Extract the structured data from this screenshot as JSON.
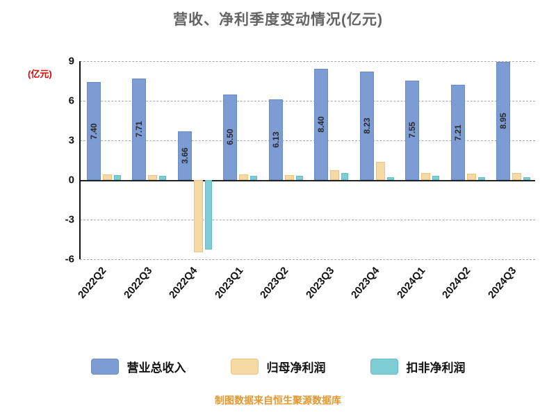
{
  "title": "营收、净利季度变动情况(亿元)",
  "y_axis_label": "(亿元)",
  "footer": "制图数据来自恒生聚源数据库",
  "chart_data": {
    "type": "bar",
    "title": "营收、净利季度变动情况(亿元)",
    "ylabel": "(亿元)",
    "categories": [
      "2022Q2",
      "2022Q3",
      "2022Q4",
      "2023Q1",
      "2023Q2",
      "2023Q3",
      "2023Q4",
      "2024Q1",
      "2024Q2",
      "2024Q3"
    ],
    "series": [
      {
        "name": "营业总收入",
        "color": "#7c9cd3",
        "border": "#6a8cc6",
        "values": [
          7.4,
          7.71,
          3.66,
          6.5,
          6.13,
          8.4,
          8.23,
          7.55,
          7.21,
          8.95
        ],
        "labels": [
          "7.40",
          "7.71",
          "3.66",
          "6.50",
          "6.13",
          "8.40",
          "8.23",
          "7.55",
          "7.21",
          "8.95"
        ]
      },
      {
        "name": "归母净利润",
        "color": "#f6daa5",
        "border": "#e9c37e",
        "values": [
          0.42,
          0.37,
          -5.46,
          0.42,
          0.37,
          0.74,
          1.37,
          0.53,
          0.47,
          0.55
        ]
      },
      {
        "name": "扣非净利润",
        "color": "#7fcdd5",
        "border": "#62bcc6",
        "values": [
          0.37,
          0.32,
          -5.24,
          0.32,
          0.3,
          0.53,
          0.2,
          0.3,
          0.2,
          0.22
        ]
      }
    ],
    "y_ticks": [
      9,
      6,
      3,
      0,
      -3,
      -6
    ],
    "ylim": [
      -6,
      9
    ],
    "grid": "horizontal-dashed",
    "legend_position": "bottom"
  }
}
